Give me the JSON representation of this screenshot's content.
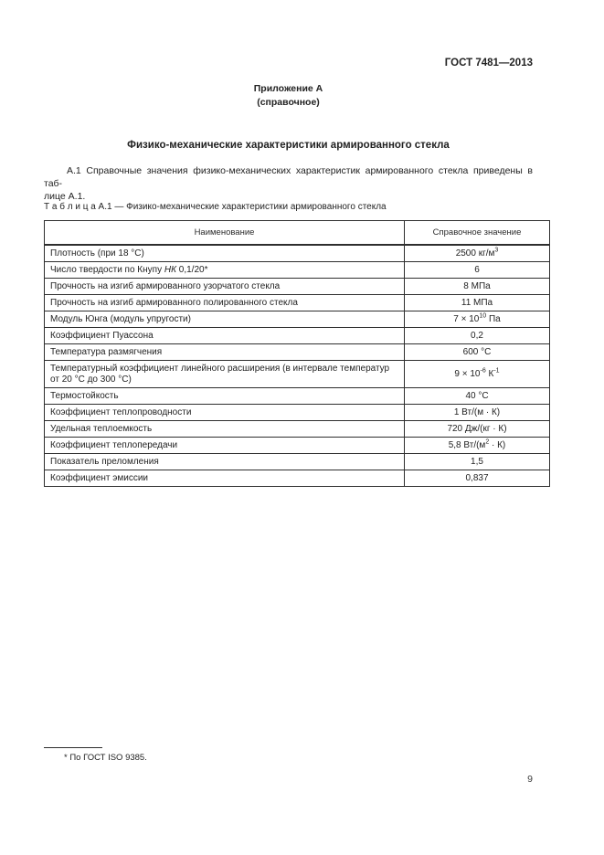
{
  "header": {
    "doc_number": "ГОСТ 7481—2013",
    "appendix_title": "Приложение А",
    "appendix_subtitle": "(справочное)",
    "section_title": "Физико-механические характеристики армированного стекла"
  },
  "paragraph": {
    "line1": "А.1 Справочные значения физико-механических характеристик армированного стекла приведены в таб-",
    "line2": "лице А.1."
  },
  "table": {
    "caption": "Т а б л и ц а   А.1 — Физико-механические характеристики армированного стекла",
    "headers": [
      "Наименование",
      "Справочное значение"
    ],
    "rows": [
      {
        "name": [
          {
            "t": "Плотность (при 18 °С)"
          }
        ],
        "value": [
          {
            "t": "2500 кг/м"
          },
          {
            "t": "3",
            "s": "sup"
          }
        ]
      },
      {
        "name": [
          {
            "t": "Число твердости по Кнупу "
          },
          {
            "t": "НК",
            "s": "i"
          },
          {
            "t": " 0,1/20*"
          }
        ],
        "value": [
          {
            "t": "6"
          }
        ]
      },
      {
        "name": [
          {
            "t": "Прочность на изгиб армированного узорчатого стекла"
          }
        ],
        "value": [
          {
            "t": "8 МПа"
          }
        ]
      },
      {
        "name": [
          {
            "t": "Прочность на изгиб армированного полированного стекла"
          }
        ],
        "value": [
          {
            "t": "11 МПа"
          }
        ]
      },
      {
        "name": [
          {
            "t": "Модуль Юнга (модуль упругости)"
          }
        ],
        "value": [
          {
            "t": "7 × 10"
          },
          {
            "t": "10",
            "s": "sup"
          },
          {
            "t": " Па"
          }
        ]
      },
      {
        "name": [
          {
            "t": "Коэффициент Пуассона"
          }
        ],
        "value": [
          {
            "t": "0,2"
          }
        ]
      },
      {
        "name": [
          {
            "t": "Температура размягчения"
          }
        ],
        "value": [
          {
            "t": "600 °С"
          }
        ]
      },
      {
        "name": [
          {
            "t": "Температурный коэффициент линейного расширения (в интервале температур от 20 °С до 300 °С)"
          }
        ],
        "value": [
          {
            "t": "9 × 10"
          },
          {
            "t": "-6",
            "s": "sup"
          },
          {
            "t": " К"
          },
          {
            "t": "-1",
            "s": "sup"
          }
        ]
      },
      {
        "name": [
          {
            "t": "Термостойкость"
          }
        ],
        "value": [
          {
            "t": "40 °С"
          }
        ]
      },
      {
        "name": [
          {
            "t": "Коэффициент теплопроводности"
          }
        ],
        "value": [
          {
            "t": "1 Вт/(м · К)"
          }
        ]
      },
      {
        "name": [
          {
            "t": "Удельная теплоемкость"
          }
        ],
        "value": [
          {
            "t": "720 Дж/(кг · К)"
          }
        ]
      },
      {
        "name": [
          {
            "t": "Коэффициент теплопередачи"
          }
        ],
        "value": [
          {
            "t": "5,8 Вт/(м"
          },
          {
            "t": "2",
            "s": "sup"
          },
          {
            "t": " · К)"
          }
        ]
      },
      {
        "name": [
          {
            "t": "Показатель преломления"
          }
        ],
        "value": [
          {
            "t": "1,5"
          }
        ]
      },
      {
        "name": [
          {
            "t": "Коэффициент эмиссии"
          }
        ],
        "value": [
          {
            "t": "0,837"
          }
        ]
      }
    ]
  },
  "footnote": {
    "text": "*  По ГОСТ ISO 9385."
  },
  "footer": {
    "page_number": "9"
  }
}
